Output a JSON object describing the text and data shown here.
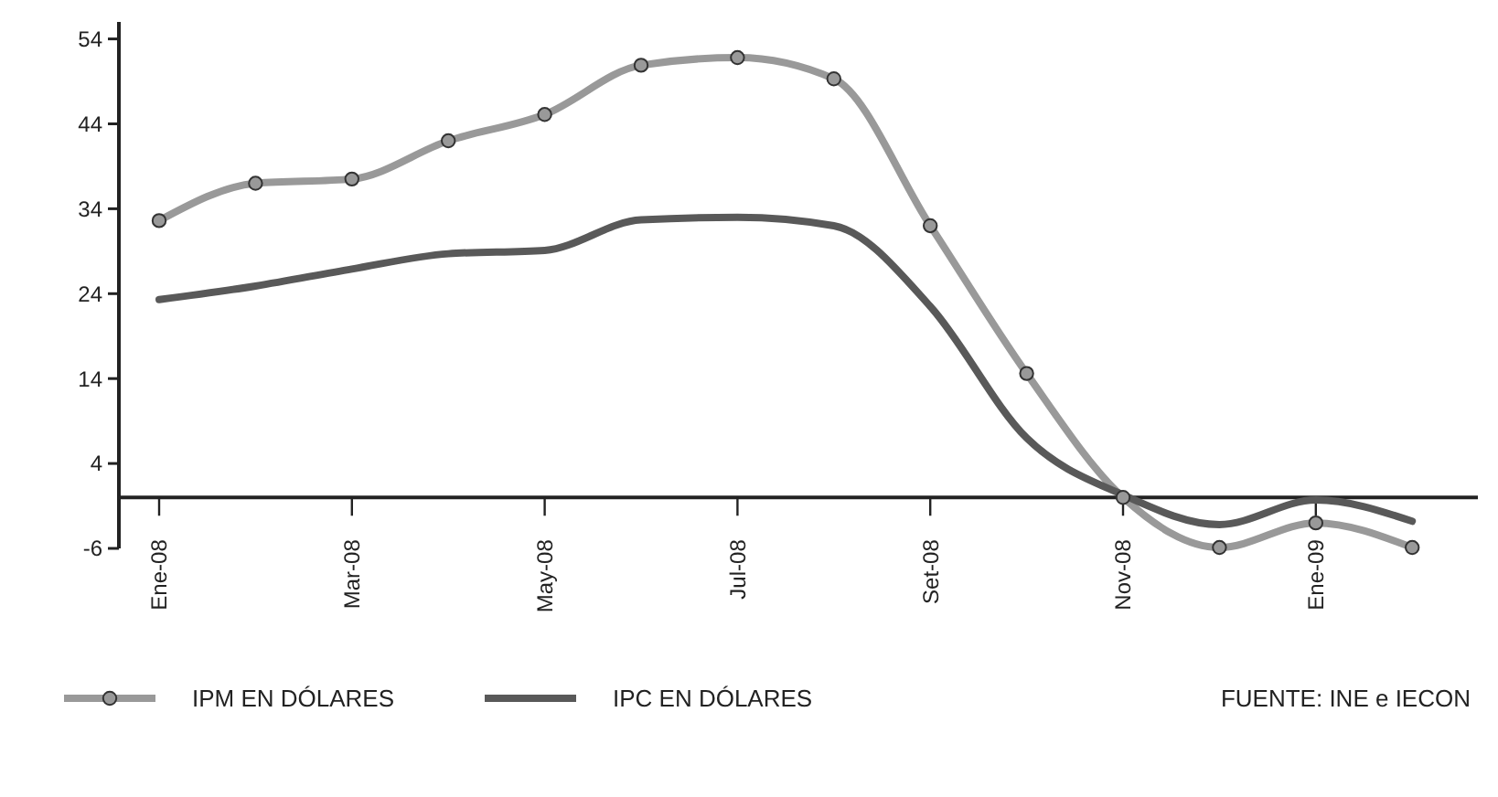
{
  "chart_data": {
    "type": "line",
    "categories": [
      "Ene-08",
      null,
      "Mar-08",
      null,
      "May-08",
      null,
      "Jul-08",
      null,
      "Set-08",
      null,
      "Nov-08",
      null,
      "Ene-09",
      null
    ],
    "series": [
      {
        "name": "IPM EN DÓLARES",
        "color": "#999999",
        "marker": "circle",
        "values": [
          32.6,
          37.0,
          37.5,
          42.0,
          45.1,
          50.9,
          51.8,
          49.3,
          32.0,
          14.6,
          0,
          -5.9,
          -3.0,
          -5.9
        ]
      },
      {
        "name": "IPC EN DÓLARES",
        "color": "#595959",
        "marker": "none",
        "values": [
          23.3,
          24.9,
          26.9,
          28.7,
          29.1,
          32.7,
          33.0,
          32.0,
          22.5,
          7.0,
          0.3,
          -3.2,
          -0.3,
          -2.8
        ]
      }
    ],
    "ylim": [
      -6,
      56
    ],
    "yticks": [
      -6,
      4,
      14,
      24,
      34,
      44,
      54
    ],
    "grid": false,
    "legend": "bottom",
    "annotations": [
      "FUENTE: INE e IECON"
    ]
  }
}
